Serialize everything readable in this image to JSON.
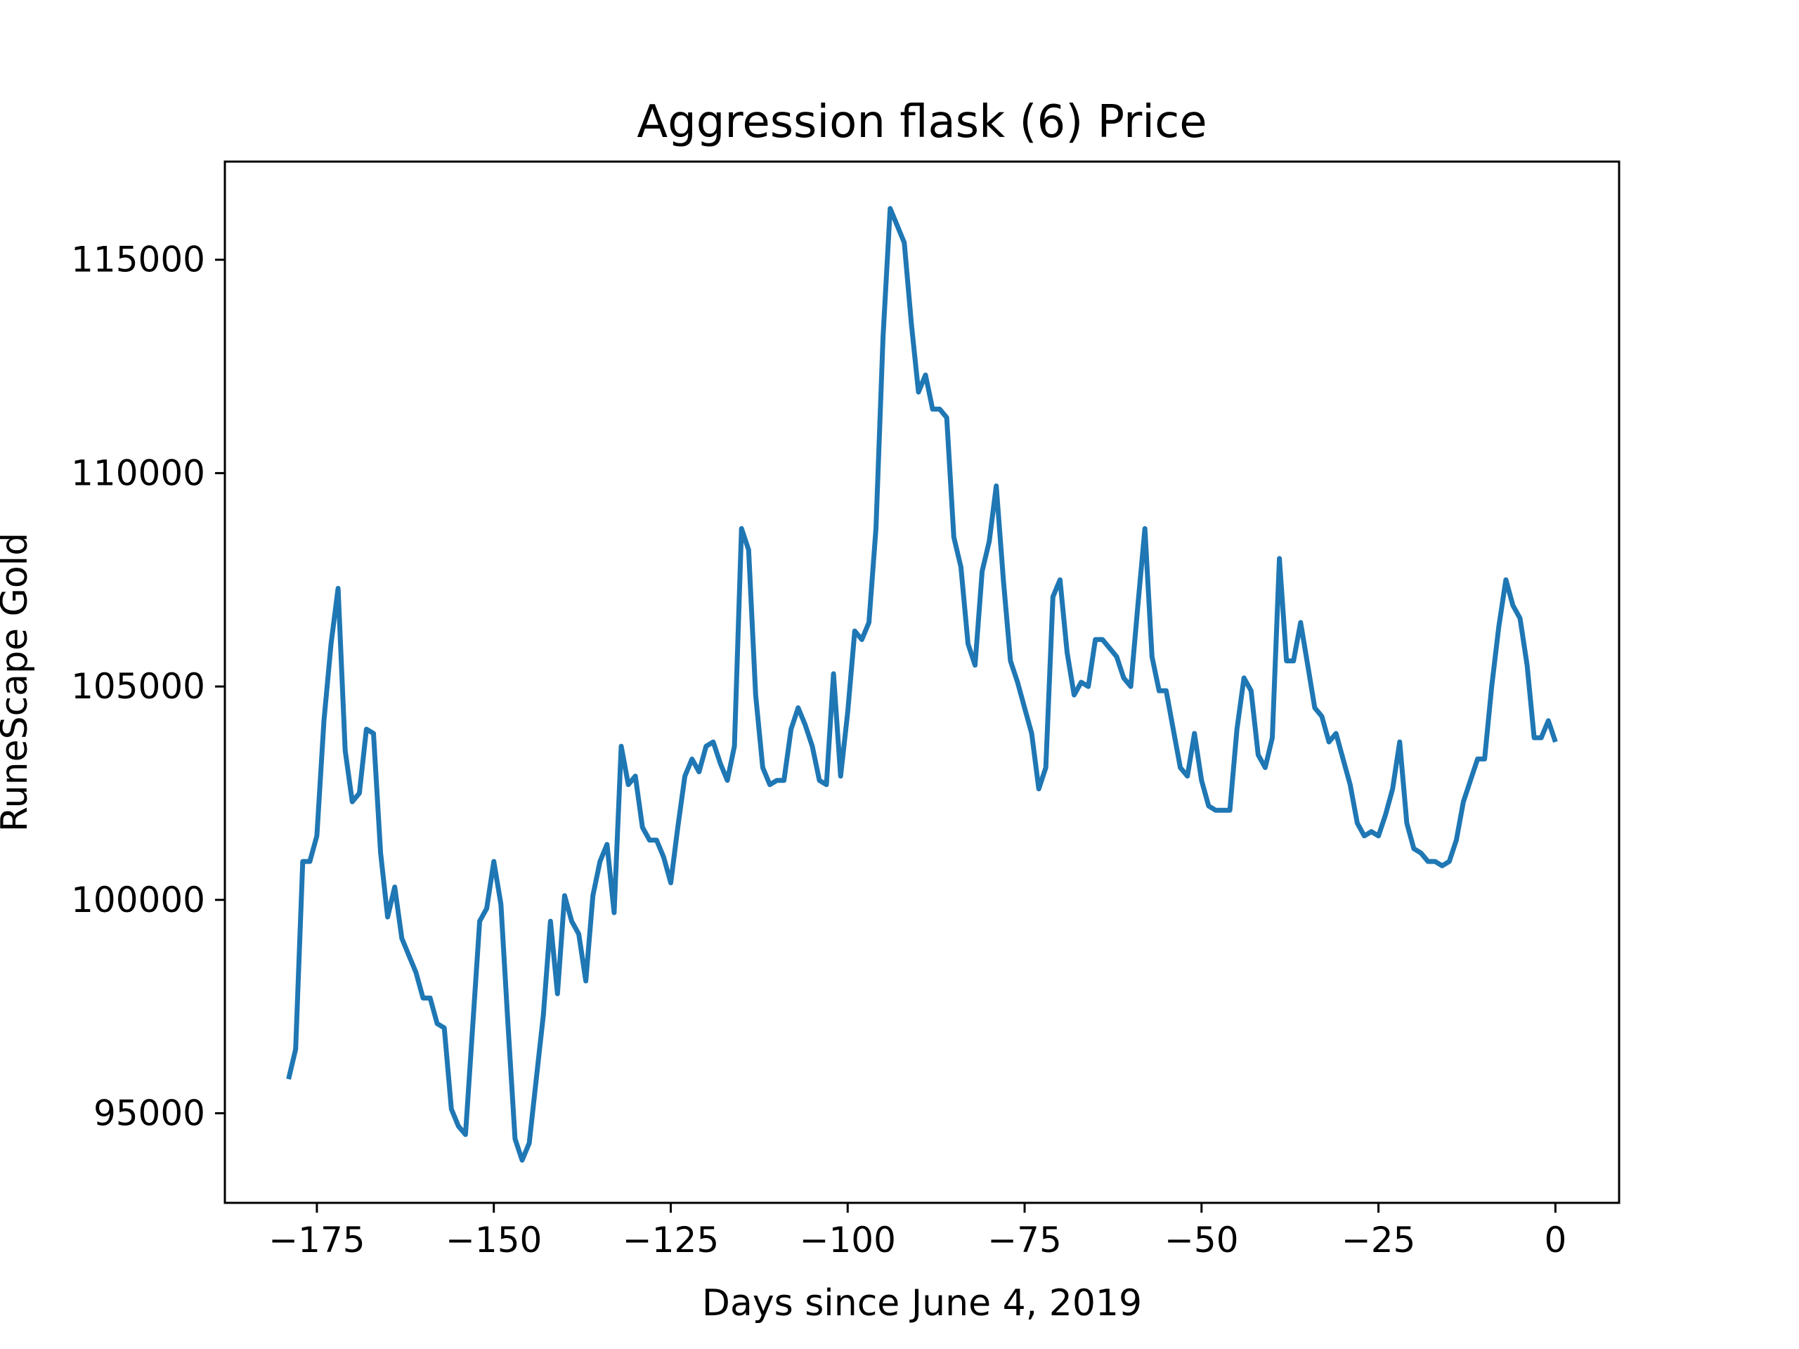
{
  "chart_data": {
    "type": "line",
    "title": "Aggression flask (6) Price",
    "xlabel": "Days since June 4, 2019",
    "ylabel": "RuneScape Gold",
    "xlim": [
      -188,
      9
    ],
    "ylim": [
      92900,
      117300
    ],
    "grid": false,
    "line_color": "#1f77b4",
    "x_ticks": [
      {
        "value": -175,
        "label": "−175"
      },
      {
        "value": -150,
        "label": "−150"
      },
      {
        "value": -125,
        "label": "−125"
      },
      {
        "value": -100,
        "label": "−100"
      },
      {
        "value": -75,
        "label": "−75"
      },
      {
        "value": -50,
        "label": "−50"
      },
      {
        "value": -25,
        "label": "−25"
      },
      {
        "value": 0,
        "label": "0"
      }
    ],
    "y_ticks": [
      {
        "value": 95000,
        "label": "95000"
      },
      {
        "value": 100000,
        "label": "100000"
      },
      {
        "value": 105000,
        "label": "105000"
      },
      {
        "value": 110000,
        "label": "110000"
      },
      {
        "value": 115000,
        "label": "115000"
      }
    ],
    "series": [
      {
        "x": [
          -179,
          -178,
          -177,
          -176,
          -175,
          -174,
          -173,
          -172,
          -171,
          -170,
          -169,
          -168,
          -167,
          -166,
          -165,
          -164,
          -163,
          -162,
          -161,
          -160,
          -159,
          -158,
          -157,
          -156,
          -155,
          -154,
          -153,
          -152,
          -151,
          -150,
          -149,
          -148,
          -147,
          -146,
          -145,
          -144,
          -143,
          -142,
          -141,
          -140,
          -139,
          -138,
          -137,
          -136,
          -135,
          -134,
          -133,
          -132,
          -131,
          -130,
          -129,
          -128,
          -127,
          -126,
          -125,
          -124,
          -123,
          -122,
          -121,
          -120,
          -119,
          -118,
          -117,
          -116,
          -115,
          -114,
          -113,
          -112,
          -111,
          -110,
          -109,
          -108,
          -107,
          -106,
          -105,
          -104,
          -103,
          -102,
          -101,
          -100,
          -99,
          -98,
          -97,
          -96,
          -95,
          -94,
          -93,
          -92,
          -91,
          -90,
          -89,
          -88,
          -87,
          -86,
          -85,
          -84,
          -83,
          -82,
          -81,
          -80,
          -79,
          -78,
          -77,
          -76,
          -75,
          -74,
          -73,
          -72,
          -71,
          -70,
          -69,
          -68,
          -67,
          -66,
          -65,
          -64,
          -63,
          -62,
          -61,
          -60,
          -59,
          -58,
          -57,
          -56,
          -55,
          -54,
          -53,
          -52,
          -51,
          -50,
          -49,
          -48,
          -47,
          -46,
          -45,
          -44,
          -43,
          -42,
          -41,
          -40,
          -39,
          -38,
          -37,
          -36,
          -35,
          -34,
          -33,
          -32,
          -31,
          -30,
          -29,
          -28,
          -27,
          -26,
          -25,
          -24,
          -23,
          -22,
          -21,
          -20,
          -19,
          -18,
          -17,
          -16,
          -15,
          -14,
          -13,
          -12,
          -11,
          -10,
          -9,
          -8,
          -7,
          -6,
          -5,
          -4,
          -3,
          -2,
          -1,
          0
        ],
        "y": [
          95800,
          96500,
          100900,
          100900,
          101500,
          104200,
          106000,
          107300,
          103500,
          102300,
          102500,
          104000,
          103900,
          101100,
          99600,
          100300,
          99100,
          98700,
          98300,
          97700,
          97700,
          97100,
          97000,
          95100,
          94700,
          94500,
          97000,
          99500,
          99800,
          100900,
          99900,
          97100,
          94400,
          93900,
          94300,
          95800,
          97300,
          99500,
          97800,
          100100,
          99500,
          99200,
          98100,
          100100,
          100900,
          101300,
          99700,
          103600,
          102700,
          102900,
          101700,
          101400,
          101400,
          101000,
          100400,
          101700,
          102900,
          103300,
          103000,
          103600,
          103700,
          103200,
          102800,
          103600,
          108700,
          108200,
          104800,
          103100,
          102700,
          102800,
          102800,
          104000,
          104500,
          104100,
          103600,
          102800,
          102700,
          105300,
          102900,
          104400,
          106300,
          106100,
          106500,
          108700,
          113200,
          116200,
          115800,
          115400,
          113500,
          111900,
          112300,
          111500,
          111500,
          111300,
          108500,
          107800,
          106000,
          105500,
          107700,
          108400,
          109700,
          107500,
          105600,
          105100,
          104500,
          103900,
          102600,
          103100,
          107100,
          107500,
          105800,
          104800,
          105100,
          105000,
          106100,
          106100,
          105900,
          105700,
          105200,
          105000,
          106900,
          108700,
          105700,
          104900,
          104900,
          104000,
          103100,
          102900,
          103900,
          102800,
          102200,
          102100,
          102100,
          102100,
          104000,
          105200,
          104900,
          103400,
          103100,
          103800,
          108000,
          105600,
          105600,
          106500,
          105500,
          104500,
          104300,
          103700,
          103900,
          103300,
          102700,
          101800,
          101500,
          101600,
          101500,
          102000,
          102600,
          103700,
          101800,
          101200,
          101100,
          100900,
          100900,
          100800,
          100900,
          101400,
          102300,
          102800,
          103300,
          103300,
          105000,
          106400,
          107500,
          106900,
          106600,
          105500,
          103800,
          103800,
          104200,
          103700
        ]
      }
    ]
  }
}
